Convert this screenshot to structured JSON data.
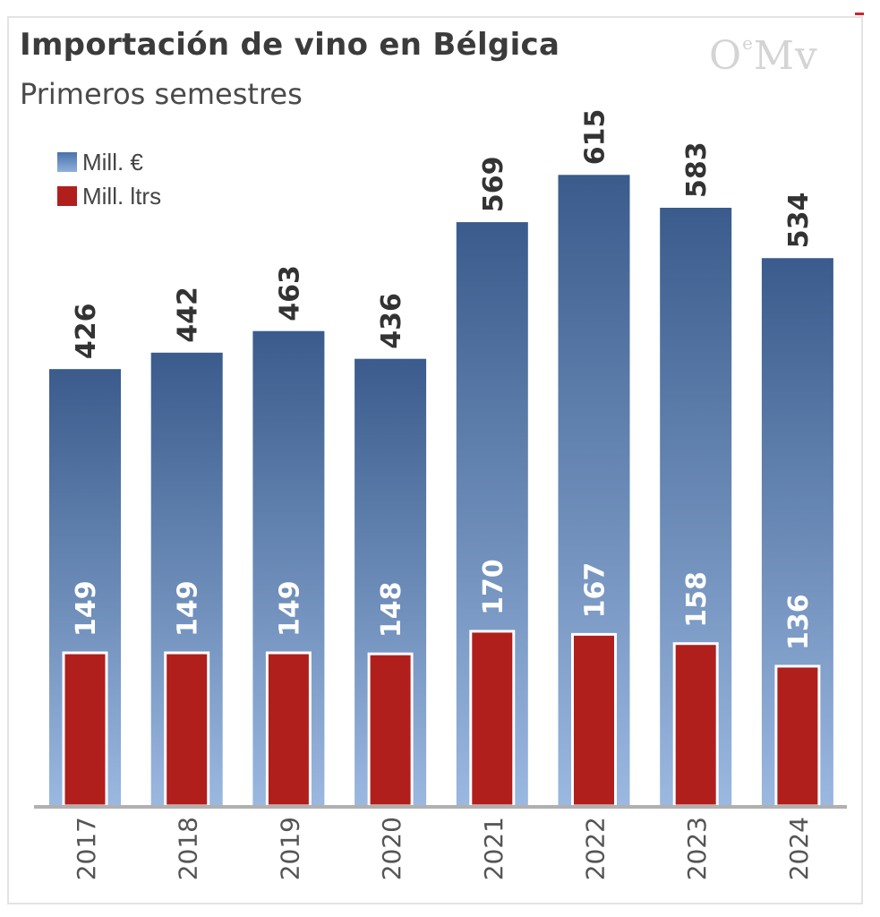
{
  "title": "Importación de vino en Bélgica",
  "subtitle": "Primeros semestres",
  "logo": {
    "main": "O",
    "sup": "e",
    "tail": "Mv"
  },
  "colors": {
    "eur_top": "#3a5b8c",
    "eur_bottom": "#9ab8e0",
    "ltr": "#b01f1c",
    "value_label": "#333333",
    "inner_label": "#ffffff",
    "axis": "#b0b0b0",
    "tick_label": "#555555"
  },
  "legend": [
    {
      "label": "Mill. €",
      "series": "eur"
    },
    {
      "label": "Mill. ltrs",
      "series": "ltr"
    }
  ],
  "chart_data": {
    "type": "bar",
    "title": "Importación de vino en Bélgica",
    "subtitle": "Primeros semestres",
    "categories": [
      "2017",
      "2018",
      "2019",
      "2020",
      "2021",
      "2022",
      "2023",
      "2024"
    ],
    "series": [
      {
        "name": "Mill. €",
        "key": "eur",
        "values": [
          426,
          442,
          463,
          436,
          569,
          615,
          583,
          534
        ]
      },
      {
        "name": "Mill. ltrs",
        "key": "ltr",
        "values": [
          149,
          149,
          149,
          148,
          170,
          167,
          158,
          136
        ]
      }
    ],
    "ylim": [
      0,
      700
    ],
    "grid": false,
    "legend_position": "top-left",
    "xlabel": "",
    "ylabel": ""
  }
}
